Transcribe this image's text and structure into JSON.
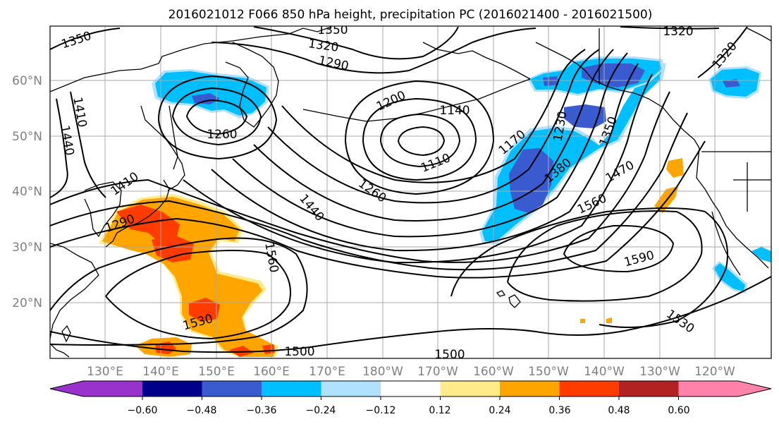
{
  "title": "2016021012 F066 850 hPa height, precipitation PC (2016021400 - 2016021500)",
  "lat_labels": [
    "60°N",
    "50°N",
    "40°N",
    "30°N",
    "20°N"
  ],
  "lon_labels": [
    "130°E",
    "140°E",
    "150°E",
    "160°E",
    "170°E",
    "180°W",
    "170°W",
    "160°W",
    "150°W",
    "140°W",
    "130°W",
    "120°W"
  ],
  "contour_labels": [
    "1350",
    "1350",
    "1320",
    "1320",
    "1290",
    "1320",
    "1200",
    "1140",
    "1410",
    "1440",
    "1260",
    "1110",
    "1170",
    "1230",
    "1350",
    "1380",
    "1470",
    "1410",
    "1260",
    "1440",
    "1560",
    "1290",
    "1560",
    "1590",
    "1530",
    "1530",
    "1500",
    "1500"
  ],
  "colorbar": {
    "ticks": [
      "−0.60",
      "−0.48",
      "−0.36",
      "−0.24",
      "−0.12",
      "0.12",
      "0.24",
      "0.36",
      "0.48",
      "0.60"
    ],
    "colors": [
      "#9932cc",
      "#00008b",
      "#3a5bd0",
      "#00bfff",
      "#b0e2ff",
      "#ffffff",
      "#ffeb8a",
      "#ffa500",
      "#ff3c00",
      "#b22222",
      "#ff82ab"
    ]
  },
  "colors": {
    "blue_dark": "#3a5bd0",
    "blue": "#00bfff",
    "blue_light": "#b0e2ff",
    "yellow": "#ffeb8a",
    "orange": "#ffa500",
    "red": "#ff3c00"
  }
}
